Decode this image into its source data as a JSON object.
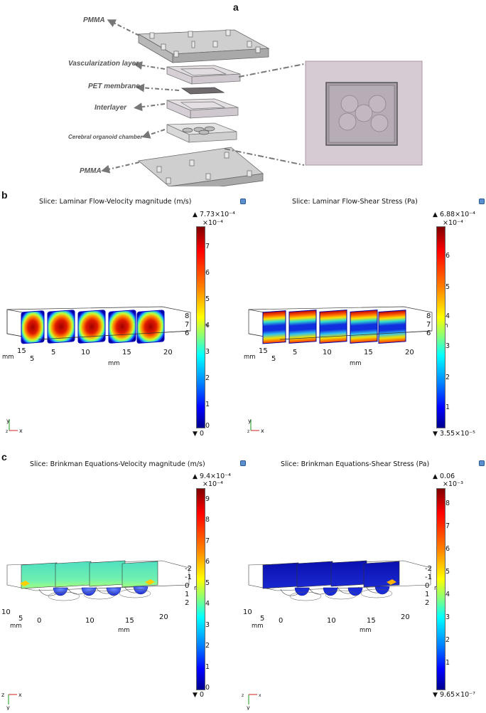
{
  "panels": {
    "a": {
      "letter": "a",
      "labels": [
        "PMMA",
        "Vascularization layer",
        "PET membrane",
        "Interlayer",
        "Cerebral organoid chamber",
        "PMMA"
      ]
    },
    "b": {
      "letter": "b",
      "left": {
        "title": "Slice: Laminar Flow-Velocity magnitude (m/s)",
        "max": "7.73×10⁻⁴",
        "scale": "×10⁻⁴",
        "min": "0",
        "ticks": [
          "7",
          "6",
          "5",
          "4",
          "3",
          "2",
          "1",
          "0"
        ],
        "x_ticks": [
          "5",
          "10",
          "15",
          "20"
        ],
        "y_ticks": [
          "15",
          "5"
        ],
        "z_ticks": [
          "8",
          "7",
          "6"
        ],
        "mm": "mm"
      },
      "right": {
        "title": "Slice: Laminar Flow-Shear Stress (Pa)",
        "max": "6.88×10⁻⁴",
        "scale": "×10⁻⁴",
        "min": "3.55×10⁻⁵",
        "ticks": [
          "6",
          "5",
          "4",
          "3",
          "2",
          "1"
        ],
        "x_ticks": [
          "5",
          "10",
          "15",
          "20"
        ],
        "y_ticks": [
          "15",
          "5"
        ],
        "z_ticks": [
          "8",
          "7",
          "6"
        ],
        "mm": "mm"
      }
    },
    "c": {
      "letter": "c",
      "left": {
        "title": "Slice: Brinkman Equations-Velocity magnitude (m/s)",
        "max": "9.4×10⁻⁴",
        "scale": "×10⁻⁴",
        "min": "0",
        "ticks": [
          "9",
          "8",
          "7",
          "6",
          "5",
          "4",
          "3",
          "2",
          "1",
          "0"
        ],
        "x_ticks": [
          "0",
          "10",
          "15",
          "20"
        ],
        "y_ticks": [
          "10",
          "5"
        ],
        "z_ticks": [
          "-2",
          "-1",
          "0",
          "1",
          "2"
        ],
        "mm": "mm"
      },
      "right": {
        "title": "Slice: Brinkman Equations-Shear Stress (Pa)",
        "max": "0.06",
        "scale": "×10⁻³",
        "min": "9.65×10⁻⁷",
        "ticks": [
          "8",
          "7",
          "6",
          "5",
          "4",
          "3",
          "2",
          "1"
        ],
        "x_ticks": [
          "0",
          "10",
          "15",
          "20"
        ],
        "y_ticks": [
          "10",
          "5"
        ],
        "z_ticks": [
          "-2",
          "-1",
          "0",
          "1",
          "2"
        ],
        "mm": "mm"
      }
    }
  },
  "axes": {
    "x": "x",
    "y": "y",
    "z": "z"
  },
  "colors": {
    "pmma": "#c9c9c9",
    "membrane": "#777777",
    "jet_low": "#00008f",
    "jet_high": "#7f0000"
  }
}
